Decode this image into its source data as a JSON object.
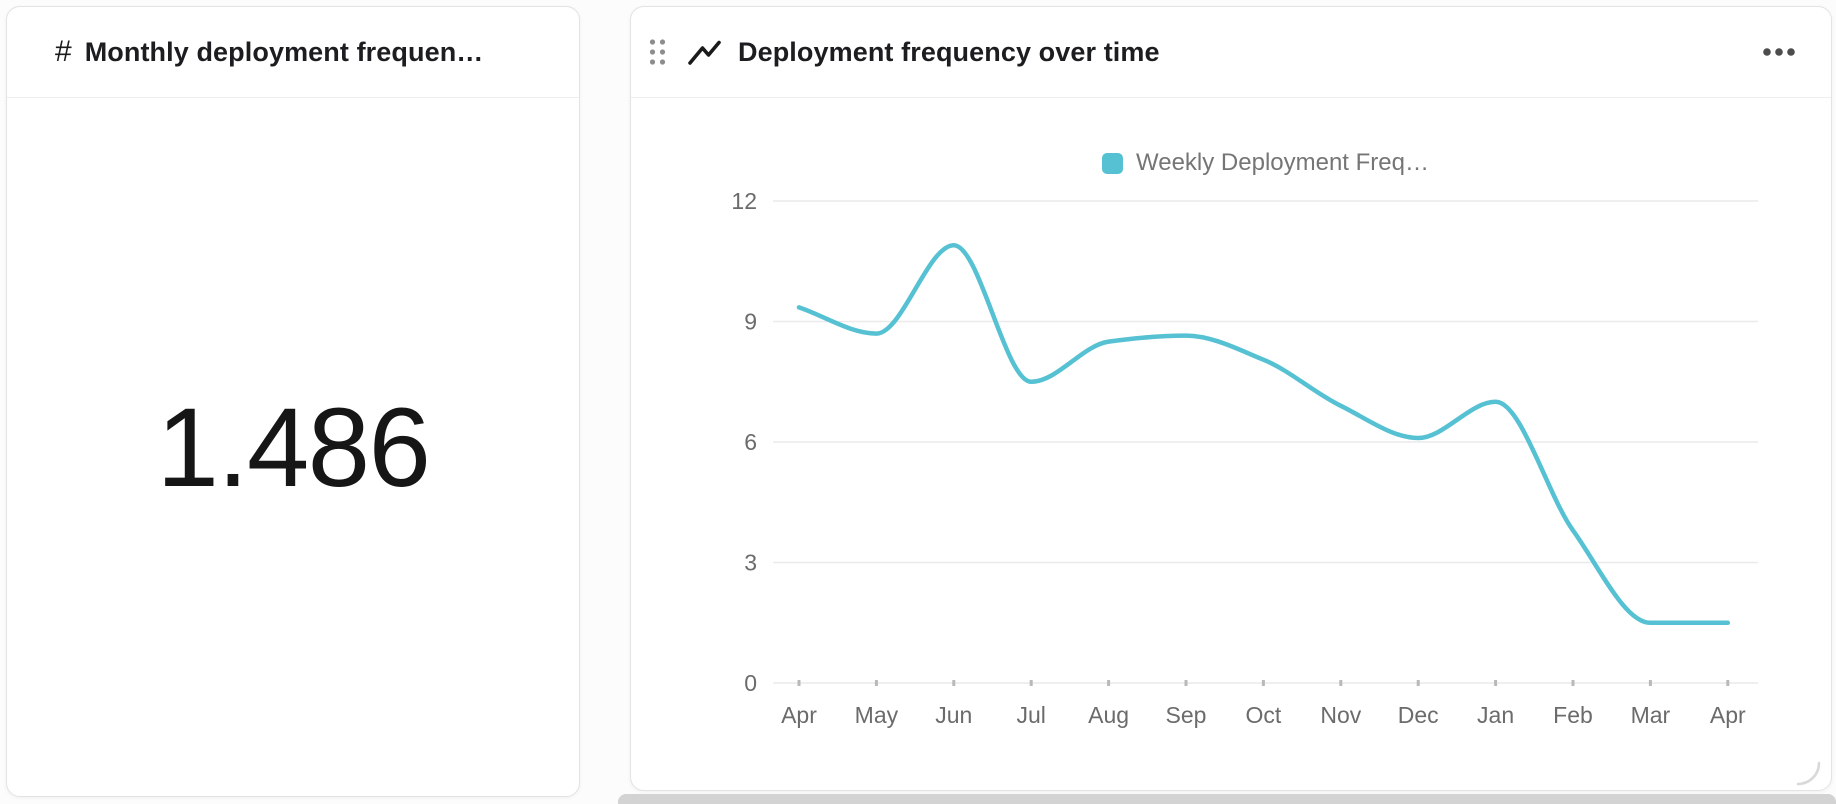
{
  "page": {
    "background": "#FCFCFC"
  },
  "metric_card": {
    "icon_glyph": "#",
    "title": "Monthly deployment frequen…",
    "value": "1.486"
  },
  "chart_card": {
    "title": "Deployment frequency over time",
    "drag_icon": "drag-handle-dots",
    "type_icon": "line-chart",
    "menu_icon": "ellipsis-horizontal",
    "resize_icon": "corner-resize-arc",
    "legend": {
      "label": "Weekly Deployment Freq…",
      "swatch_color": "#55C1D2"
    }
  },
  "chart_data": {
    "type": "line",
    "title": "Deployment frequency over time",
    "categories": [
      "Apr",
      "May",
      "Jun",
      "Jul",
      "Aug",
      "Sep",
      "Oct",
      "Nov",
      "Dec",
      "Jan",
      "Feb",
      "Mar",
      "Apr"
    ],
    "series": [
      {
        "name": "Weekly Deployment Freq…",
        "color": "#55C1D2",
        "values": [
          9.35,
          8.7,
          10.9,
          7.5,
          8.5,
          8.65,
          8.05,
          6.9,
          6.1,
          7.0,
          3.8,
          1.5,
          1.5
        ]
      }
    ],
    "xlabel": "",
    "ylabel": "",
    "y_ticks": [
      0,
      3,
      6,
      9,
      12
    ],
    "ylim": [
      0,
      12
    ],
    "grid": true,
    "grid_color": "#EAEAEA",
    "tick_color": "#B9B9B9",
    "legend_position": "top-center",
    "smooth": true,
    "line_width": 4.5
  }
}
